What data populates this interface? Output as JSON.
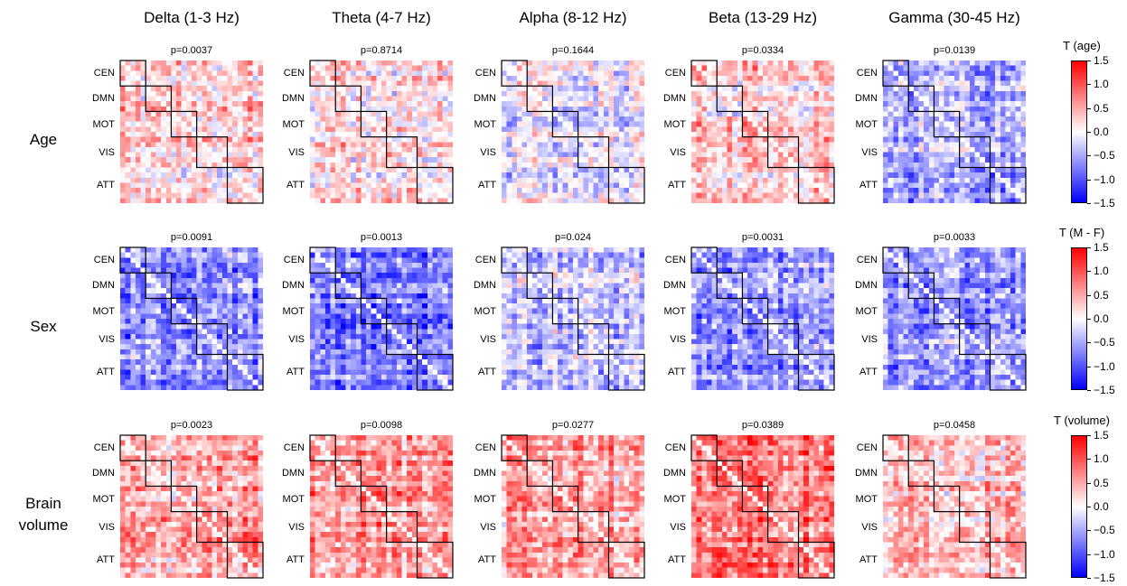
{
  "chart_data": {
    "type": "heatmap",
    "bands": [
      "Delta (1-3 Hz)",
      "Theta (4-7 Hz)",
      "Alpha (8-12 Hz)",
      "Beta (13-29 Hz)",
      "Gamma (30-45 Hz)"
    ],
    "rows": [
      {
        "label_lines": [
          "Age"
        ],
        "colorbar_title": "T (age)",
        "p_values": [
          "p=0.0037",
          "p=0.8714",
          "p=0.1644",
          "p=0.0334",
          "p=0.0139"
        ],
        "mean_t": [
          0.25,
          0.2,
          -0.1,
          0.25,
          -0.5
        ]
      },
      {
        "label_lines": [
          "Sex"
        ],
        "colorbar_title": "T (M - F)",
        "p_values": [
          "p=0.0091",
          "p=0.0013",
          "p=0.024",
          "p=0.0031",
          "p=0.0033"
        ],
        "mean_t": [
          -0.65,
          -0.75,
          -0.35,
          -0.65,
          -0.6
        ]
      },
      {
        "label_lines": [
          "Brain",
          "volume"
        ],
        "colorbar_title": "T (volume)",
        "p_values": [
          "p=0.0023",
          "p=0.0098",
          "p=0.0277",
          "p=0.0389",
          "p=0.0458"
        ],
        "mean_t": [
          0.55,
          0.6,
          0.55,
          0.8,
          0.35
        ]
      }
    ],
    "networks": [
      "CEN",
      "DMN",
      "MOT",
      "VIS",
      "ATT"
    ],
    "network_sizes": [
      5,
      5,
      5,
      6,
      7
    ],
    "colorbar": {
      "range": [
        -1.5,
        1.5
      ],
      "ticks": [
        "1.5",
        "1.0",
        "0.5",
        "0.0",
        "−0.5",
        "−1.0",
        "−1.5"
      ],
      "colormap": [
        "#0000ff",
        "#ffffff",
        "#ff0000"
      ]
    }
  }
}
